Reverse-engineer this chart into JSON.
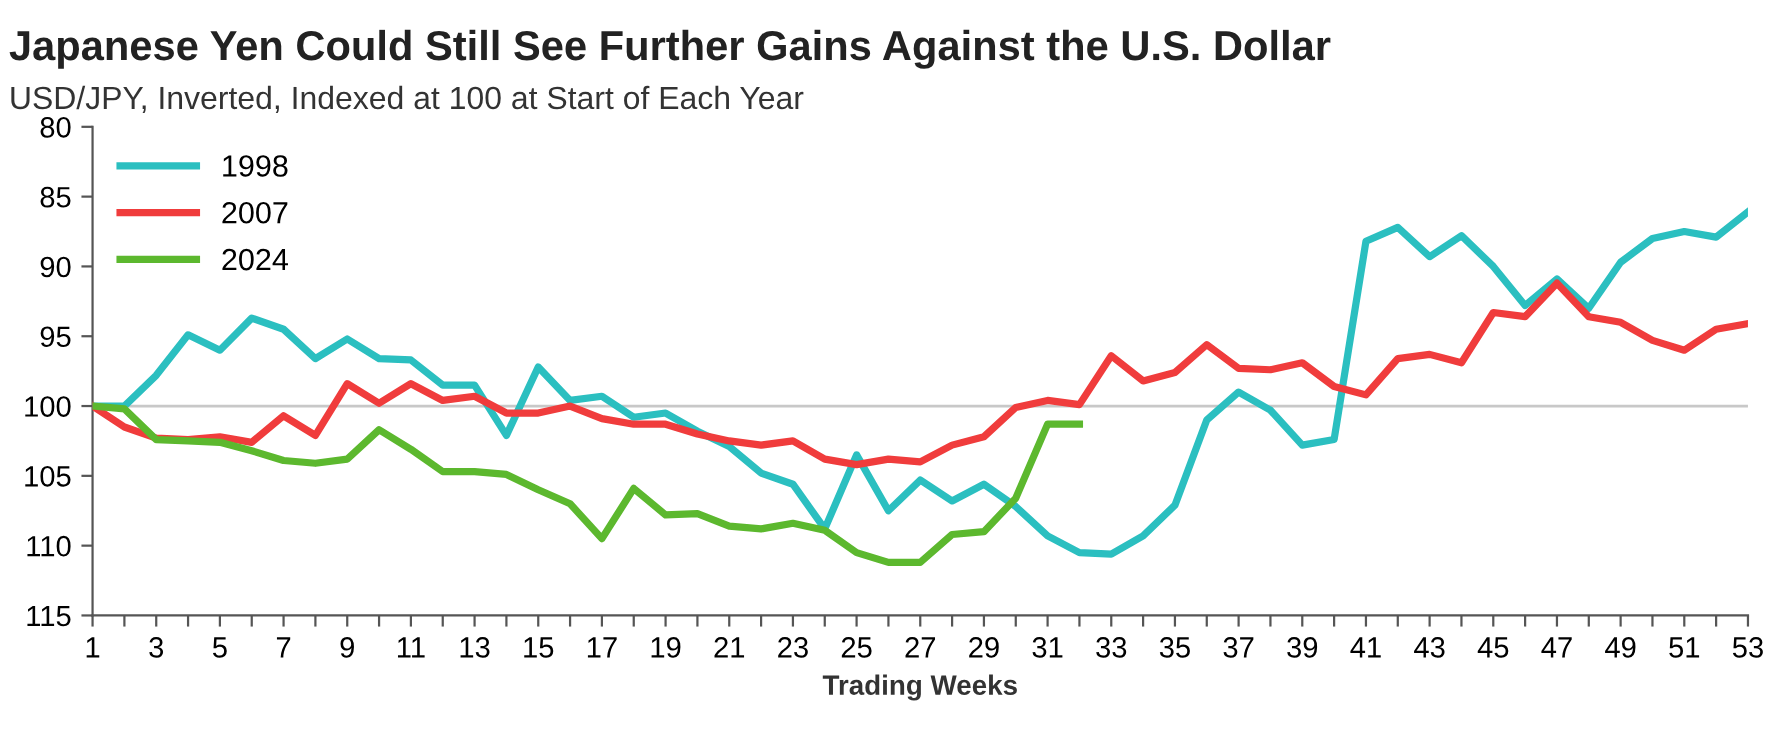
{
  "chart_data": {
    "type": "line",
    "title": "Japanese Yen Could Still See Further Gains Against the U.S. Dollar",
    "subtitle": "USD/JPY, Inverted, Indexed at 100 at Start of Each Year",
    "xlabel": "Trading Weeks",
    "x": [
      1,
      2,
      3,
      4,
      5,
      6,
      7,
      8,
      9,
      10,
      11,
      12,
      13,
      14,
      15,
      16,
      17,
      18,
      19,
      20,
      21,
      22,
      23,
      24,
      25,
      26,
      27,
      28,
      29,
      30,
      31,
      32,
      33,
      34,
      35,
      36,
      37,
      38,
      39,
      40,
      41,
      42,
      43,
      44,
      45,
      46,
      47,
      48,
      49,
      50,
      51,
      52,
      53
    ],
    "series": [
      {
        "name": "1998",
        "color": "#2bbfc0",
        "values": [
          100,
          100,
          97.8,
          94.9,
          96.0,
          93.7,
          94.5,
          96.6,
          95.2,
          96.6,
          96.7,
          98.5,
          98.5,
          102.1,
          97.2,
          99.6,
          99.3,
          100.8,
          100.5,
          101.8,
          102.9,
          104.8,
          105.6,
          108.8,
          103.5,
          107.5,
          105.3,
          106.8,
          105.6,
          107.2,
          109.3,
          110.5,
          110.6,
          109.3,
          107.1,
          101.0,
          99.0,
          100.3,
          102.8,
          102.4,
          88.2,
          87.2,
          89.3,
          87.8,
          90.0,
          92.8,
          90.9,
          93.0,
          89.7,
          88.0,
          87.5,
          87.9,
          86.1
        ]
      },
      {
        "name": "2007",
        "color": "#f03c3c",
        "values": [
          100,
          101.5,
          102.3,
          102.4,
          102.2,
          102.6,
          100.7,
          102.1,
          98.4,
          99.8,
          98.4,
          99.6,
          99.3,
          100.5,
          100.5,
          100.0,
          100.9,
          101.3,
          101.3,
          102.0,
          102.5,
          102.8,
          102.5,
          103.8,
          104.2,
          103.8,
          104.0,
          102.8,
          102.2,
          100.1,
          99.6,
          99.9,
          96.4,
          98.2,
          97.6,
          95.6,
          97.3,
          97.4,
          96.9,
          98.6,
          99.2,
          96.6,
          96.3,
          96.9,
          93.3,
          93.6,
          91.2,
          93.6,
          94.0,
          95.3,
          96.0,
          94.5,
          94.1
        ]
      },
      {
        "name": "2024",
        "color": "#5cb82e",
        "values": [
          100,
          100.2,
          102.4,
          102.5,
          102.6,
          103.2,
          103.9,
          104.1,
          103.8,
          101.7,
          103.1,
          104.7,
          104.7,
          104.9,
          106.0,
          107.0,
          109.5,
          105.9,
          107.8,
          107.7,
          108.6,
          108.8,
          108.4,
          108.9,
          110.5,
          111.2,
          111.2,
          109.2,
          109.0,
          106.6,
          101.3,
          101.3,
          null,
          null,
          null,
          null,
          null,
          null,
          null,
          null,
          null,
          null,
          null,
          null,
          null,
          null,
          null,
          null,
          null,
          null,
          null,
          null,
          null
        ]
      }
    ],
    "xlim": [
      1,
      53
    ],
    "xticks": [
      1,
      {
        "value": 2,
        "label": null
      },
      3,
      {
        "value": 4,
        "label": null
      },
      5,
      {
        "value": 6,
        "label": null
      },
      7,
      {
        "value": 8,
        "label": null
      },
      9,
      {
        "value": 10,
        "label": null
      },
      11,
      {
        "value": 12,
        "label": null
      },
      13,
      {
        "value": 14,
        "label": null
      },
      15,
      {
        "value": 16,
        "label": null
      },
      17,
      {
        "value": 18,
        "label": null
      },
      19,
      {
        "value": 20,
        "label": null
      },
      21,
      {
        "value": 22,
        "label": null
      },
      23,
      {
        "value": 24,
        "label": null
      },
      25,
      {
        "value": 26,
        "label": null
      },
      27,
      {
        "value": 28,
        "label": null
      },
      29,
      {
        "value": 30,
        "label": null
      },
      31,
      {
        "value": 32,
        "label": null
      },
      33,
      {
        "value": 34,
        "label": null
      },
      35,
      {
        "value": 36,
        "label": null
      },
      37,
      {
        "value": 38,
        "label": null
      },
      39,
      {
        "value": 40,
        "label": null
      },
      41,
      {
        "value": 42,
        "label": null
      },
      43,
      {
        "value": 44,
        "label": null
      },
      45,
      {
        "value": 46,
        "label": null
      },
      47,
      {
        "value": 48,
        "label": null
      },
      49,
      {
        "value": 50,
        "label": null
      },
      51,
      {
        "value": 52,
        "label": null
      },
      53
    ],
    "ylim": [
      115,
      80
    ],
    "yticks": [
      80,
      85,
      90,
      95,
      100,
      105,
      110,
      115
    ],
    "ref_lines": [
      {
        "axis": "y",
        "value": 100,
        "color": "#c8c8c8"
      }
    ],
    "grid": false,
    "legend": "top left",
    "marker": "none",
    "line_style": "solid"
  }
}
